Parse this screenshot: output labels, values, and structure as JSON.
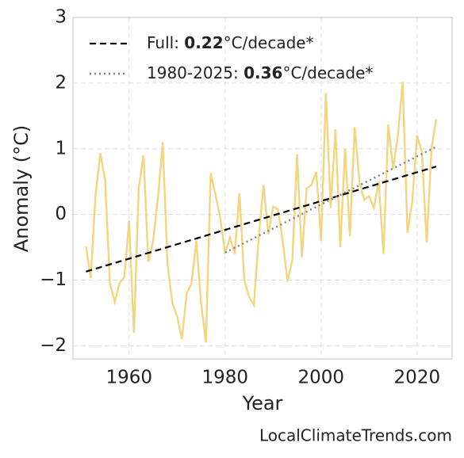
{
  "chart_data": {
    "type": "line",
    "x_label": "Year",
    "y_label": "Anomaly (°C)",
    "footer": "LocalClimateTrends.com",
    "xlim": [
      1948.3,
      2027.3
    ],
    "ylim": [
      -2.2,
      3.0
    ],
    "xticks": [
      1960,
      1980,
      2000,
      2020
    ],
    "yticks": [
      {
        "value": -2,
        "label": "−2"
      },
      {
        "value": -1,
        "label": "−1"
      },
      0,
      1,
      2,
      3
    ],
    "grid": true,
    "legend": "upper-left",
    "series": [
      {
        "color": "#f2d57e",
        "style": "solid",
        "x": [
          1951,
          1952,
          1953,
          1954,
          1955,
          1956,
          1957,
          1958,
          1959,
          1960,
          1961,
          1962,
          1963,
          1964,
          1965,
          1966,
          1967,
          1968,
          1969,
          1970,
          1971,
          1972,
          1973,
          1974,
          1975,
          1976,
          1977,
          1978,
          1979,
          1980,
          1981,
          1982,
          1983,
          1984,
          1985,
          1986,
          1987,
          1988,
          1989,
          1990,
          1991,
          1992,
          1993,
          1994,
          1995,
          1996,
          1997,
          1998,
          1999,
          2000,
          2001,
          2002,
          2003,
          2004,
          2005,
          2006,
          2007,
          2008,
          2009,
          2010,
          2011,
          2012,
          2013,
          2014,
          2015,
          2016,
          2017,
          2018,
          2019,
          2020,
          2021,
          2022,
          2023,
          2024
        ],
        "values": [
          -0.48,
          -0.97,
          0.3,
          0.93,
          0.52,
          -1.05,
          -1.33,
          -1.05,
          -0.95,
          -0.1,
          -1.8,
          0.4,
          0.9,
          -0.72,
          -0.4,
          0.25,
          1.1,
          -0.75,
          -1.35,
          -1.55,
          -1.9,
          -1.2,
          -1.05,
          -0.4,
          -1.35,
          -1.95,
          0.63,
          0.3,
          -0.05,
          -0.6,
          -0.35,
          -0.6,
          0.32,
          -1.0,
          -1.25,
          -1.38,
          -0.35,
          0.45,
          -0.3,
          0.12,
          0.08,
          -0.4,
          -1.02,
          -0.7,
          0.92,
          -0.65,
          0.4,
          0.45,
          0.65,
          -0.4,
          1.85,
          0.1,
          1.3,
          -0.5,
          1.0,
          -0.33,
          1.33,
          0.5,
          0.22,
          0.28,
          0.1,
          0.5,
          -0.6,
          1.37,
          0.7,
          1.2,
          2.02,
          -0.28,
          0.2,
          1.2,
          0.95,
          -0.43,
          1.0,
          1.45
        ]
      },
      {
        "name_parts": [
          "Full: ",
          "0.22",
          "°C/decade*"
        ],
        "color": "#000000",
        "style": "dashed",
        "x": [
          1951,
          2024
        ],
        "values": [
          -0.87,
          0.73
        ]
      },
      {
        "name_parts": [
          "1980-2025: ",
          "0.36",
          "°C/decade*"
        ],
        "color": "#808080",
        "style": "dotted",
        "x": [
          1980,
          2024
        ],
        "values": [
          -0.58,
          1.03
        ]
      }
    ]
  }
}
